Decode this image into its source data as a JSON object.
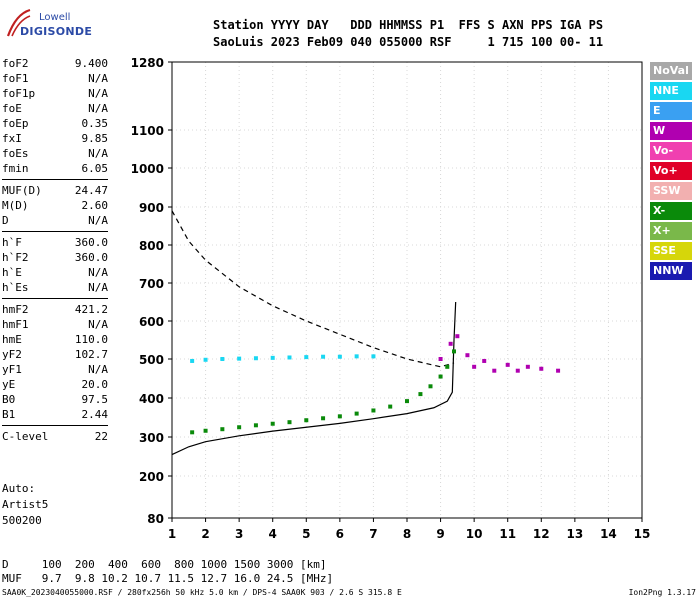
{
  "logo": {
    "line1": "Lowell",
    "line2": "DIGISONDE"
  },
  "header": {
    "row1": "Station YYYY DAY   DDD HHMMSS P1  FFS S AXN PPS IGA PS",
    "row2": "SaoLuis 2023 Feb09 040 055000 RSF     1 715 100 00- 11"
  },
  "params": [
    {
      "k": "foF2",
      "v": "9.400"
    },
    {
      "k": "foF1",
      "v": "N/A"
    },
    {
      "k": "foF1p",
      "v": "N/A"
    },
    {
      "k": "foE",
      "v": "N/A"
    },
    {
      "k": "foEp",
      "v": "0.35"
    },
    {
      "k": "fxI",
      "v": "9.85"
    },
    {
      "k": "foEs",
      "v": "N/A"
    },
    {
      "k": "fmin",
      "v": "6.05"
    },
    {
      "k": "MUF(D)",
      "v": "24.47"
    },
    {
      "k": "M(D)",
      "v": "2.60"
    },
    {
      "k": "D",
      "v": "N/A"
    },
    {
      "k": "h`F",
      "v": "360.0"
    },
    {
      "k": "h`F2",
      "v": "360.0"
    },
    {
      "k": "h`E",
      "v": "N/A"
    },
    {
      "k": "h`Es",
      "v": "N/A"
    },
    {
      "k": "hmF2",
      "v": "421.2"
    },
    {
      "k": "hmF1",
      "v": "N/A"
    },
    {
      "k": "hmE",
      "v": "110.0"
    },
    {
      "k": "yF2",
      "v": "102.7"
    },
    {
      "k": "yF1",
      "v": "N/A"
    },
    {
      "k": "yE",
      "v": "20.0"
    },
    {
      "k": "B0",
      "v": "97.5"
    },
    {
      "k": "B1",
      "v": "2.44"
    },
    {
      "k": "C-level",
      "v": "22"
    }
  ],
  "auto": {
    "line1": "Auto:",
    "line2": "Artist5",
    "line3": "500200"
  },
  "legend": [
    {
      "label": "NoVal",
      "color": "#a8a8a8"
    },
    {
      "label": "NNE",
      "color": "#19d7f2"
    },
    {
      "label": "E",
      "color": "#3aa0f2"
    },
    {
      "label": "W",
      "color": "#b000b0"
    },
    {
      "label": "Vo-",
      "color": "#f040b0"
    },
    {
      "label": "Vo+",
      "color": "#e00028"
    },
    {
      "label": "SSW",
      "color": "#f2b0b0"
    },
    {
      "label": "X-",
      "color": "#0a8a0a"
    },
    {
      "label": "X+",
      "color": "#7ab84a"
    },
    {
      "label": "SSE",
      "color": "#d6d60a"
    },
    {
      "label": "NNW",
      "color": "#1a1ab0"
    }
  ],
  "muf_table": {
    "row1": "D     100  200  400  600  800 1000 1500 3000 [km]",
    "row2": "MUF   9.7  9.8 10.2 10.7 11.5 12.7 16.0 24.5 [MHz]"
  },
  "footer": {
    "left": "SAA0K_2023040055000.RSF / 280fx256h 50 kHz 5.0 km / DPS-4 SAA0K 903 / 2.6 S 315.8 E",
    "right": "Ion2Png 1.3.17"
  },
  "chart_data": {
    "type": "scatter",
    "x_ticks": [
      "1",
      "2",
      "3",
      "4",
      "5",
      "6",
      "7",
      "8",
      "9",
      "10",
      "11",
      "12",
      "13",
      "14",
      "15"
    ],
    "y_ticks": [
      "80",
      "200",
      "300",
      "400",
      "500",
      "600",
      "700",
      "800",
      "900",
      "1000",
      "1100",
      "1280"
    ],
    "xlim": [
      1,
      15
    ],
    "ylim": [
      80,
      1280
    ],
    "grid": true,
    "series": [
      {
        "name": "X-",
        "values": [
          [
            1.6,
            312
          ],
          [
            2,
            316
          ],
          [
            2.5,
            320
          ],
          [
            3,
            325
          ],
          [
            3.5,
            330
          ],
          [
            4,
            334
          ],
          [
            4.5,
            338
          ],
          [
            5,
            343
          ],
          [
            5.5,
            348
          ],
          [
            6,
            353
          ],
          [
            6.5,
            360
          ],
          [
            7,
            368
          ],
          [
            7.5,
            378
          ],
          [
            8,
            392
          ],
          [
            8.4,
            410
          ],
          [
            8.7,
            430
          ],
          [
            9,
            455
          ],
          [
            9.2,
            480
          ],
          [
            9.4,
            520
          ]
        ]
      },
      {
        "name": "NNE",
        "values": [
          [
            1.6,
            495
          ],
          [
            2,
            498
          ],
          [
            2.5,
            500
          ],
          [
            3,
            501
          ],
          [
            3.5,
            502
          ],
          [
            4,
            503
          ],
          [
            4.5,
            504
          ],
          [
            5,
            505
          ],
          [
            5.5,
            506
          ],
          [
            6,
            506
          ],
          [
            6.5,
            507
          ],
          [
            7,
            507
          ]
        ]
      },
      {
        "name": "W",
        "values": [
          [
            9,
            500
          ],
          [
            9.3,
            540
          ],
          [
            9.5,
            560
          ],
          [
            9.8,
            510
          ],
          [
            10,
            480
          ],
          [
            10.3,
            495
          ],
          [
            10.6,
            470
          ],
          [
            11,
            485
          ],
          [
            11.3,
            470
          ],
          [
            11.6,
            480
          ],
          [
            12,
            475
          ],
          [
            12.5,
            470
          ]
        ]
      }
    ],
    "profile_solid": [
      [
        1,
        255
      ],
      [
        1.5,
        275
      ],
      [
        2,
        288
      ],
      [
        3,
        303
      ],
      [
        4,
        315
      ],
      [
        5,
        325
      ],
      [
        6,
        335
      ],
      [
        7,
        347
      ],
      [
        8,
        360
      ],
      [
        8.8,
        375
      ],
      [
        9.2,
        392
      ],
      [
        9.35,
        415
      ],
      [
        9.4,
        550
      ],
      [
        9.45,
        650
      ]
    ],
    "profile_dashed": [
      [
        1,
        890
      ],
      [
        1.5,
        810
      ],
      [
        2,
        760
      ],
      [
        3,
        690
      ],
      [
        4,
        640
      ],
      [
        5,
        600
      ],
      [
        6,
        565
      ],
      [
        7,
        530
      ],
      [
        8,
        500
      ],
      [
        9,
        480
      ],
      [
        9.4,
        490
      ]
    ]
  }
}
